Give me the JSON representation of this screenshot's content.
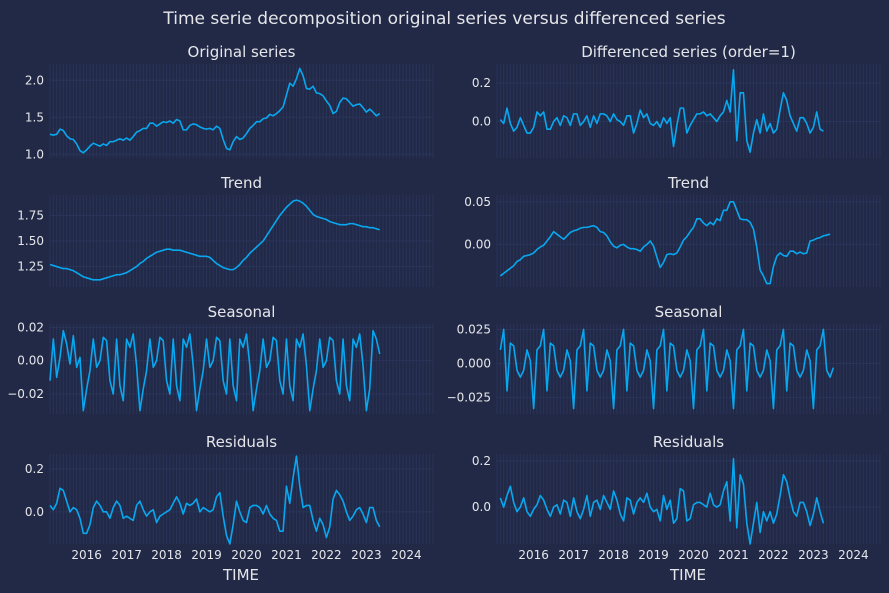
{
  "title": "Time serie decomposition original series versus differenced series",
  "colors": {
    "background": "#212946",
    "line": "#08a8f0",
    "grid": "#2a3459",
    "text": "#e6e6ea"
  },
  "xlabel": "TIME",
  "xaxis": {
    "start": 2015.083,
    "end": 2024.667,
    "ticks": [
      "2016",
      "2017",
      "2018",
      "2019",
      "2020",
      "2021",
      "2022",
      "2023",
      "2024"
    ]
  },
  "chart_data": [
    {
      "type": "line",
      "title": "Original series",
      "x_start": 2015.083,
      "x_step": 0.0833333,
      "ylim": [
        0.95,
        2.22
      ],
      "yticks": [
        "1.0",
        "1.5",
        "2.0"
      ],
      "values": [
        1.27,
        1.26,
        1.27,
        1.34,
        1.32,
        1.25,
        1.21,
        1.2,
        1.14,
        1.05,
        1.02,
        1.06,
        1.11,
        1.15,
        1.13,
        1.11,
        1.14,
        1.12,
        1.17,
        1.17,
        1.19,
        1.21,
        1.19,
        1.22,
        1.19,
        1.24,
        1.3,
        1.32,
        1.35,
        1.35,
        1.42,
        1.42,
        1.38,
        1.41,
        1.44,
        1.43,
        1.45,
        1.42,
        1.47,
        1.45,
        1.33,
        1.33,
        1.39,
        1.41,
        1.4,
        1.37,
        1.35,
        1.34,
        1.35,
        1.33,
        1.38,
        1.35,
        1.2,
        1.08,
        1.06,
        1.17,
        1.24,
        1.2,
        1.22,
        1.28,
        1.35,
        1.39,
        1.44,
        1.44,
        1.48,
        1.49,
        1.54,
        1.52,
        1.55,
        1.59,
        1.64,
        1.8,
        1.96,
        1.92,
        2.02,
        2.16,
        2.06,
        1.89,
        1.88,
        1.92,
        1.83,
        1.82,
        1.79,
        1.72,
        1.66,
        1.55,
        1.58,
        1.7,
        1.76,
        1.75,
        1.7,
        1.65,
        1.67,
        1.68,
        1.63,
        1.57,
        1.61,
        1.57,
        1.52,
        1.55
      ]
    },
    {
      "type": "line",
      "title": "Differenced series (order=1)",
      "x_start": 2015.167,
      "x_step": 0.0833333,
      "ylim": [
        -0.19,
        0.3
      ],
      "yticks": [
        "0.0",
        "0.2"
      ],
      "values": [
        0.01,
        -0.01,
        0.07,
        -0.01,
        -0.05,
        -0.03,
        0.02,
        -0.02,
        -0.06,
        -0.06,
        -0.03,
        0.05,
        0.03,
        0.05,
        -0.04,
        -0.04,
        0.0,
        0.02,
        -0.02,
        0.03,
        0.02,
        -0.02,
        0.04,
        0.04,
        -0.02,
        0.0,
        0.03,
        -0.03,
        0.03,
        -0.01,
        0.04,
        0.04,
        0.03,
        0.0,
        0.04,
        0.01,
        0.0,
        -0.02,
        0.03,
        0.03,
        -0.06,
        -0.01,
        0.06,
        0.02,
        0.04,
        -0.01,
        -0.02,
        0.0,
        -0.03,
        0.02,
        -0.01,
        0.02,
        -0.13,
        -0.02,
        0.07,
        0.07,
        -0.06,
        -0.02,
        0.01,
        0.04,
        0.04,
        0.05,
        0.03,
        0.04,
        0.02,
        0.0,
        0.03,
        0.05,
        0.11,
        0.05,
        0.27,
        -0.1,
        0.15,
        0.15,
        -0.1,
        -0.16,
        -0.06,
        0.01,
        -0.06,
        0.04,
        -0.05,
        -0.01,
        -0.06,
        -0.04,
        0.06,
        0.15,
        0.11,
        0.03,
        -0.01,
        -0.05,
        0.02,
        0.02,
        -0.01,
        -0.06,
        -0.03,
        0.05,
        -0.04,
        -0.05
      ]
    },
    {
      "type": "line",
      "title": "Trend",
      "x_start": 2015.083,
      "x_step": 0.0833333,
      "ylim": [
        1.05,
        1.95
      ],
      "yticks": [
        "1.25",
        "1.50",
        "1.75"
      ],
      "values": [
        1.27,
        1.26,
        1.25,
        1.24,
        1.23,
        1.23,
        1.22,
        1.21,
        1.19,
        1.17,
        1.15,
        1.14,
        1.13,
        1.12,
        1.12,
        1.12,
        1.13,
        1.14,
        1.15,
        1.16,
        1.17,
        1.17,
        1.18,
        1.19,
        1.21,
        1.23,
        1.25,
        1.28,
        1.3,
        1.33,
        1.35,
        1.37,
        1.39,
        1.4,
        1.41,
        1.42,
        1.42,
        1.41,
        1.41,
        1.41,
        1.4,
        1.39,
        1.38,
        1.37,
        1.36,
        1.35,
        1.35,
        1.35,
        1.34,
        1.31,
        1.28,
        1.26,
        1.24,
        1.23,
        1.22,
        1.22,
        1.24,
        1.27,
        1.31,
        1.34,
        1.38,
        1.41,
        1.44,
        1.47,
        1.5,
        1.55,
        1.6,
        1.65,
        1.7,
        1.75,
        1.79,
        1.83,
        1.86,
        1.89,
        1.9,
        1.89,
        1.87,
        1.84,
        1.8,
        1.76,
        1.74,
        1.73,
        1.72,
        1.71,
        1.69,
        1.68,
        1.67,
        1.66,
        1.66,
        1.66,
        1.67,
        1.67,
        1.66,
        1.65,
        1.64,
        1.64,
        1.63,
        1.63,
        1.62,
        1.61
      ]
    },
    {
      "type": "line",
      "title": "Trend",
      "x_start": 2015.167,
      "x_step": 0.0833333,
      "ylim": [
        -0.05,
        0.058
      ],
      "yticks": [
        "0.00",
        "0.05"
      ],
      "values": [
        -0.037,
        -0.034,
        -0.031,
        -0.028,
        -0.025,
        -0.02,
        -0.018,
        -0.014,
        -0.013,
        -0.012,
        -0.01,
        -0.006,
        -0.003,
        -0.001,
        0.004,
        0.009,
        0.015,
        0.012,
        0.009,
        0.006,
        0.01,
        0.014,
        0.016,
        0.017,
        0.019,
        0.02,
        0.02,
        0.021,
        0.022,
        0.02,
        0.015,
        0.014,
        0.01,
        0.003,
        -0.002,
        -0.004,
        -0.001,
        0.0,
        -0.003,
        -0.005,
        -0.005,
        -0.006,
        -0.008,
        -0.003,
        0.0,
        0.004,
        -0.002,
        -0.015,
        -0.027,
        -0.021,
        -0.012,
        -0.011,
        -0.012,
        -0.01,
        -0.003,
        0.005,
        0.009,
        0.015,
        0.02,
        0.03,
        0.03,
        0.025,
        0.022,
        0.026,
        0.023,
        0.03,
        0.028,
        0.04,
        0.04,
        0.05,
        0.05,
        0.04,
        0.03,
        0.029,
        0.029,
        0.026,
        0.018,
        -0.003,
        -0.03,
        -0.037,
        -0.046,
        -0.046,
        -0.026,
        -0.014,
        -0.01,
        -0.013,
        -0.014,
        -0.008,
        -0.008,
        -0.011,
        -0.009,
        -0.011,
        -0.01,
        0.004,
        0.005,
        0.007,
        0.008,
        0.01,
        0.011,
        0.012
      ]
    },
    {
      "type": "line",
      "title": "Seasonal",
      "x_start": 2015.083,
      "x_step": 0.0833333,
      "ylim": [
        -0.032,
        0.022
      ],
      "yticks": [
        "−0.02",
        "0.00",
        "0.02"
      ],
      "values": [
        -0.012,
        0.013,
        -0.01,
        0.002,
        0.018,
        0.01,
        -0.002,
        0.015,
        -0.004,
        0.002,
        -0.03,
        -0.017,
        -0.006,
        0.013,
        -0.004,
        0.0,
        0.014,
        0.012,
        -0.012,
        -0.02,
        0.013,
        -0.015,
        -0.024,
        0.013,
        0.008,
        0.016,
        -0.003,
        -0.03,
        -0.017,
        -0.006,
        0.013,
        -0.004,
        0.0,
        0.014,
        0.012,
        -0.012,
        -0.02,
        0.013,
        -0.015,
        -0.024,
        0.013,
        0.008,
        0.016,
        -0.003,
        -0.03,
        -0.017,
        -0.006,
        0.013,
        -0.004,
        0.0,
        0.014,
        0.012,
        -0.012,
        -0.02,
        0.013,
        -0.015,
        -0.024,
        0.013,
        0.008,
        0.016,
        -0.003,
        -0.03,
        -0.017,
        -0.006,
        0.013,
        -0.004,
        0.0,
        0.014,
        0.012,
        -0.012,
        -0.02,
        0.013,
        -0.015,
        -0.024,
        0.013,
        0.008,
        0.016,
        -0.003,
        -0.03,
        -0.017,
        -0.006,
        0.013,
        -0.004,
        0.0,
        0.014,
        0.012,
        -0.012,
        -0.02,
        0.013,
        -0.015,
        -0.024,
        0.013,
        0.008,
        0.016,
        -0.003,
        -0.03,
        -0.017,
        0.018,
        0.013,
        0.004
      ]
    },
    {
      "type": "line",
      "title": "Seasonal",
      "x_start": 2015.167,
      "x_step": 0.0833333,
      "ylim": [
        -0.037,
        0.029
      ],
      "yticks": [
        "−0.025",
        "0.000",
        "0.025"
      ],
      "values": [
        0.01,
        0.025,
        -0.02,
        0.015,
        0.013,
        -0.005,
        -0.01,
        -0.005,
        0.01,
        0.002,
        -0.033,
        0.01,
        0.013,
        0.025,
        -0.02,
        0.015,
        0.013,
        -0.005,
        -0.01,
        -0.005,
        0.01,
        0.002,
        -0.033,
        0.01,
        0.013,
        0.025,
        -0.02,
        0.015,
        0.013,
        -0.005,
        -0.01,
        -0.005,
        0.01,
        0.002,
        -0.033,
        0.01,
        0.013,
        0.025,
        -0.02,
        0.015,
        0.013,
        -0.005,
        -0.01,
        -0.005,
        0.01,
        0.002,
        -0.033,
        0.01,
        0.013,
        0.025,
        -0.02,
        0.015,
        0.013,
        -0.005,
        -0.01,
        -0.005,
        0.01,
        0.002,
        -0.033,
        0.01,
        0.013,
        0.025,
        -0.02,
        0.015,
        0.013,
        -0.005,
        -0.01,
        -0.005,
        0.01,
        0.002,
        -0.033,
        0.01,
        0.013,
        0.025,
        -0.02,
        0.015,
        0.013,
        -0.005,
        -0.01,
        -0.005,
        0.01,
        0.002,
        -0.033,
        0.01,
        0.013,
        0.025,
        -0.02,
        0.015,
        0.013,
        -0.005,
        -0.01,
        -0.005,
        0.01,
        0.002,
        -0.033,
        0.01,
        0.013,
        0.025,
        -0.005,
        -0.01,
        -0.003
      ]
    },
    {
      "type": "line",
      "title": "Residuals",
      "x_start": 2015.083,
      "x_step": 0.0833333,
      "ylim": [
        -0.15,
        0.27
      ],
      "yticks": [
        "0.0",
        "0.2"
      ],
      "values": [
        0.03,
        0.01,
        0.04,
        0.11,
        0.1,
        0.05,
        0.0,
        0.02,
        0.01,
        -0.03,
        -0.1,
        -0.1,
        -0.06,
        0.02,
        0.05,
        0.03,
        0.0,
        0.0,
        -0.03,
        0.02,
        0.05,
        0.03,
        -0.03,
        -0.02,
        -0.03,
        -0.04,
        0.03,
        0.05,
        0.01,
        -0.02,
        0.0,
        0.01,
        -0.05,
        -0.02,
        -0.01,
        0.0,
        0.01,
        0.04,
        0.07,
        0.04,
        -0.01,
        0.04,
        0.03,
        0.04,
        0.06,
        0.0,
        0.02,
        0.01,
        0.0,
        0.01,
        0.07,
        0.09,
        -0.02,
        -0.11,
        -0.15,
        -0.06,
        0.05,
        0.0,
        -0.04,
        -0.05,
        0.02,
        0.03,
        0.03,
        0.02,
        -0.01,
        0.03,
        -0.01,
        -0.03,
        -0.04,
        -0.09,
        -0.09,
        0.12,
        0.04,
        0.16,
        0.26,
        0.12,
        0.02,
        0.03,
        0.03,
        -0.04,
        -0.09,
        -0.03,
        -0.06,
        -0.12,
        -0.07,
        0.06,
        0.1,
        0.08,
        0.05,
        0.0,
        -0.04,
        -0.02,
        0.01,
        0.02,
        -0.01,
        -0.05,
        0.02,
        0.02,
        -0.04,
        -0.07
      ]
    },
    {
      "type": "line",
      "title": "Residuals",
      "x_start": 2015.167,
      "x_step": 0.0833333,
      "ylim": [
        -0.16,
        0.23
      ],
      "yticks": [
        "0.0",
        "0.2"
      ],
      "values": [
        0.04,
        0.0,
        0.05,
        0.09,
        0.02,
        -0.02,
        0.0,
        0.04,
        -0.02,
        -0.04,
        -0.01,
        0.01,
        0.05,
        0.03,
        -0.01,
        -0.04,
        0.0,
        0.01,
        -0.03,
        0.03,
        0.02,
        -0.04,
        0.04,
        -0.02,
        -0.05,
        -0.01,
        0.05,
        -0.04,
        0.02,
        0.03,
        -0.01,
        0.05,
        0.02,
        -0.01,
        0.07,
        0.03,
        -0.03,
        -0.06,
        0.04,
        0.03,
        -0.03,
        0.02,
        0.04,
        0.02,
        0.06,
        0.0,
        -0.02,
        -0.01,
        -0.06,
        0.05,
        -0.01,
        0.03,
        -0.07,
        -0.05,
        0.08,
        0.07,
        -0.06,
        -0.05,
        0.01,
        0.02,
        0.02,
        0.01,
        0.0,
        0.06,
        0.01,
        0.0,
        0.01,
        0.07,
        0.11,
        -0.06,
        0.21,
        -0.09,
        0.14,
        0.1,
        -0.07,
        -0.16,
        -0.07,
        0.02,
        -0.11,
        -0.02,
        -0.06,
        -0.02,
        -0.07,
        -0.03,
        0.05,
        0.14,
        0.11,
        0.04,
        -0.02,
        -0.04,
        0.02,
        0.02,
        -0.02,
        -0.08,
        -0.03,
        0.04,
        -0.02,
        -0.07
      ]
    }
  ]
}
